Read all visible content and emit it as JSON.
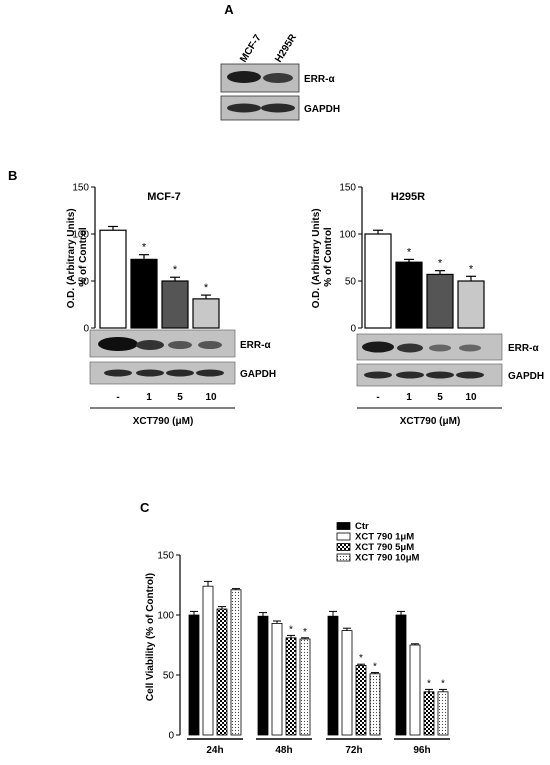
{
  "panels": {
    "a": {
      "label": "A"
    },
    "b": {
      "label": "B"
    },
    "c": {
      "label": "C"
    }
  },
  "blot_a": {
    "lanes": [
      "MCF-7",
      "H295R"
    ],
    "bands": [
      "ERR-α",
      "GAPDH"
    ]
  },
  "blot_b": {
    "lane_labels": [
      "-",
      "1",
      "5",
      "10"
    ],
    "bands": [
      "ERR-α",
      "GAPDH"
    ],
    "xlabel": "XCT790 (μM)"
  },
  "colors": {
    "black": "#000000",
    "white": "#ffffff",
    "dark_gray": "#555555",
    "light_gray": "#c8c8c8"
  },
  "chart_data": [
    {
      "id": "mcf7",
      "type": "bar",
      "title": "MCF-7",
      "ylabel": "O.D. (Arbitrary Units) % of Control",
      "ylim": [
        0,
        150
      ],
      "yticks": [
        "0",
        "50",
        "100",
        "150"
      ],
      "categories": [
        "-",
        "1",
        "5",
        "10"
      ],
      "values": [
        104,
        73,
        50,
        31
      ],
      "errors": [
        4,
        5,
        4,
        4
      ],
      "significance": [
        "",
        "*",
        "*",
        "*"
      ],
      "xlabel": "XCT790 (μM)"
    },
    {
      "id": "h295r",
      "type": "bar",
      "title": "H295R",
      "ylabel": "O.D. (Arbitrary Units) % of Control",
      "ylim": [
        0,
        150
      ],
      "yticks": [
        "0",
        "50",
        "100",
        "150"
      ],
      "categories": [
        "-",
        "1",
        "5",
        "10"
      ],
      "values": [
        100,
        70,
        57,
        50
      ],
      "errors": [
        4,
        3,
        4,
        5
      ],
      "significance": [
        "",
        "*",
        "*",
        "*"
      ],
      "xlabel": "XCT790 (μM)"
    },
    {
      "id": "viability",
      "type": "bar",
      "title": "",
      "ylabel": "Cell Viability (% of Control)",
      "ylim": [
        0,
        150
      ],
      "yticks": [
        "0",
        "50",
        "100",
        "150"
      ],
      "categories": [
        "24h",
        "48h",
        "72h",
        "96h"
      ],
      "legend_position": "top-right",
      "series": [
        {
          "name": "Ctr",
          "values": [
            100,
            99,
            99,
            100
          ],
          "errors": [
            3,
            3,
            4,
            3
          ],
          "significance": [
            "",
            "",
            "",
            ""
          ]
        },
        {
          "name": "XCT 790 1μM",
          "values": [
            124,
            93,
            87,
            75
          ],
          "errors": [
            4,
            2,
            2,
            1
          ],
          "significance": [
            "",
            "",
            "",
            ""
          ]
        },
        {
          "name": "XCT 790 5μM",
          "values": [
            105,
            81,
            58,
            36
          ],
          "errors": [
            2,
            2,
            1,
            2
          ],
          "significance": [
            "",
            "*",
            "*",
            "*"
          ]
        },
        {
          "name": "XCT 790 10μM",
          "values": [
            121,
            80,
            51,
            36
          ],
          "errors": [
            1,
            1,
            1,
            2
          ],
          "significance": [
            "",
            "*",
            "*",
            "*"
          ]
        }
      ]
    }
  ]
}
